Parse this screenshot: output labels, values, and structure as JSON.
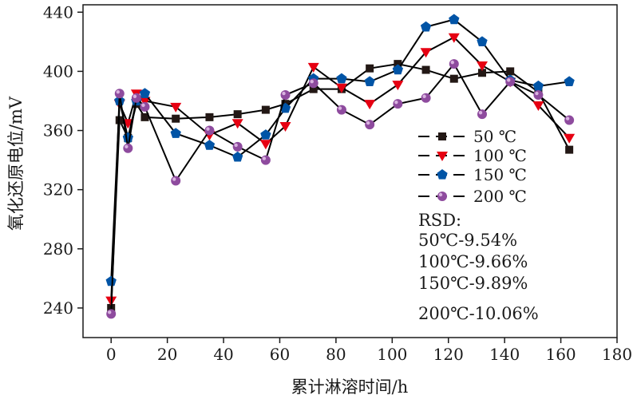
{
  "chart_data": {
    "type": "line",
    "title": "",
    "xlabel": "累计淋溶时间/h",
    "ylabel": "氧化还原电位/mV",
    "xlim": [
      -10,
      180
    ],
    "ylim": [
      220,
      445
    ],
    "xticks": [
      0,
      20,
      40,
      60,
      80,
      100,
      120,
      140,
      160,
      180
    ],
    "yticks": [
      240,
      280,
      320,
      360,
      400,
      440
    ],
    "x": [
      0,
      3,
      6,
      9,
      12,
      23,
      35,
      45,
      55,
      62,
      72,
      82,
      92,
      102,
      112,
      122,
      132,
      142,
      152,
      163
    ],
    "series": [
      {
        "name": "50 ℃",
        "marker": "square",
        "color": "#231815",
        "values": [
          240,
          367,
          355,
          378,
          369,
          368,
          369,
          371,
          374,
          378,
          388,
          388,
          402,
          405,
          401,
          395,
          399,
          400,
          386,
          347
        ]
      },
      {
        "name": "100 ℃",
        "marker": "triangle-down",
        "color": "#e60012",
        "values": [
          245,
          378,
          365,
          385,
          380,
          376,
          357,
          365,
          351,
          363,
          403,
          389,
          378,
          391,
          413,
          423,
          404,
          393,
          377,
          355
        ]
      },
      {
        "name": "150 ℃",
        "marker": "pentagon",
        "color": "#0054a6",
        "values": [
          258,
          380,
          355,
          380,
          385,
          358,
          350,
          342,
          357,
          375,
          395,
          395,
          393,
          401,
          430,
          435,
          420,
          394,
          390,
          393
        ]
      },
      {
        "name": "200 ℃",
        "marker": "circle",
        "color": "#8e4b9e",
        "values": [
          236,
          385,
          348,
          382,
          376,
          326,
          360,
          349,
          340,
          384,
          392,
          374,
          364,
          378,
          382,
          405,
          371,
          393,
          384,
          367
        ]
      }
    ],
    "annotation": {
      "title": "RSD:",
      "lines": [
        "50℃-9.54%",
        "100℃-9.66%",
        "150℃-9.89%",
        "200℃-10.06%"
      ]
    },
    "legend_position": "right-middle",
    "grid": false
  }
}
